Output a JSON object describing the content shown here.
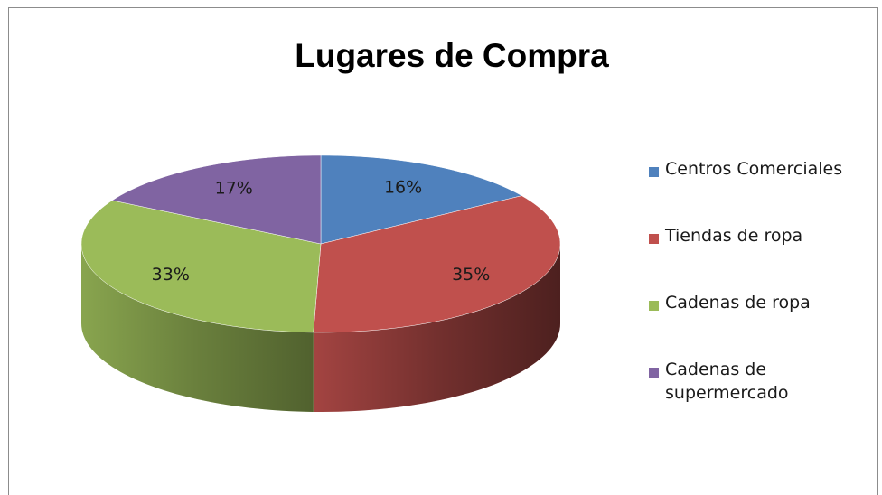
{
  "chart_data": {
    "type": "pie",
    "title": "Lugares de Compra",
    "categories": [
      "Centros Comerciales",
      "Tiendas de ropa",
      "Cadenas de ropa",
      "Cadenas de supermercado"
    ],
    "values": [
      16,
      35,
      33,
      17
    ],
    "value_labels": [
      "16%",
      "35%",
      "33%",
      "17%"
    ],
    "colors": [
      "#4f81bd",
      "#c0504d",
      "#9bbb59",
      "#8064a2"
    ],
    "legend": "right"
  }
}
